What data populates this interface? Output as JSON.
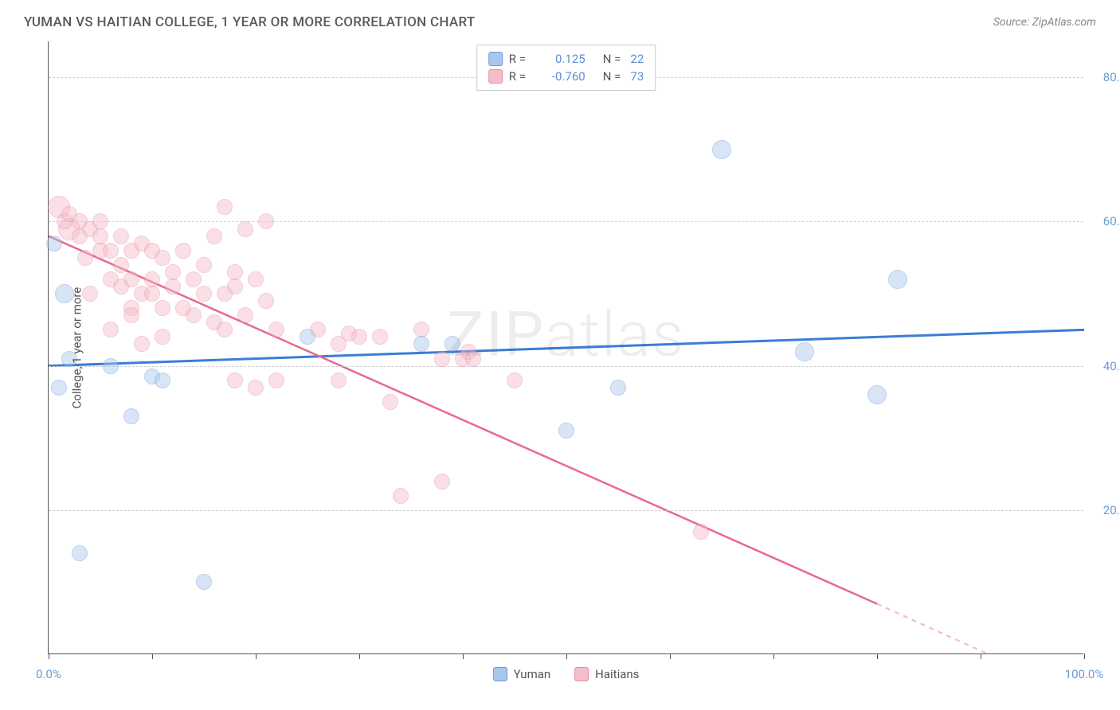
{
  "title": "YUMAN VS HAITIAN COLLEGE, 1 YEAR OR MORE CORRELATION CHART",
  "source_label": "Source: ZipAtlas.com",
  "y_axis_title": "College, 1 year or more",
  "watermark": {
    "part1": "ZIP",
    "part2": "atlas"
  },
  "chart": {
    "type": "scatter",
    "xlim": [
      0,
      100
    ],
    "ylim": [
      0,
      85
    ],
    "background_color": "#ffffff",
    "grid_color": "#d0d0d0",
    "axis_color": "#555555",
    "x_ticks": [
      0,
      10,
      20,
      30,
      40,
      50,
      60,
      70,
      80,
      90,
      100
    ],
    "x_tick_labels": {
      "0": "0.0%",
      "100": "100.0%"
    },
    "y_ticks": [
      20,
      40,
      60,
      80
    ],
    "y_tick_labels": {
      "20": "20.0%",
      "40": "40.0%",
      "60": "60.0%",
      "80": "80.0%"
    },
    "tick_label_color": "#6a9bd8",
    "tick_label_fontsize": 15,
    "marker_radius": 10,
    "marker_opacity": 0.45,
    "marker_stroke_opacity": 0.8,
    "series": {
      "yuman": {
        "label": "Yuman",
        "fill": "#a9c7ec",
        "stroke": "#6a9bd8",
        "swatch_fill": "#a9c7ec",
        "swatch_stroke": "#6a9bd8",
        "R": "0.125",
        "N": "22",
        "regression": {
          "x1": 0,
          "y1": 40,
          "x2": 100,
          "y2": 45,
          "color": "#3b7dd8",
          "width": 3
        },
        "points": [
          {
            "x": 0.5,
            "y": 57
          },
          {
            "x": 1.5,
            "y": 50,
            "r": 12
          },
          {
            "x": 1,
            "y": 37
          },
          {
            "x": 2,
            "y": 41
          },
          {
            "x": 3,
            "y": 14
          },
          {
            "x": 6,
            "y": 40
          },
          {
            "x": 8,
            "y": 33
          },
          {
            "x": 10,
            "y": 38.5
          },
          {
            "x": 11,
            "y": 38
          },
          {
            "x": 15,
            "y": 10
          },
          {
            "x": 25,
            "y": 44
          },
          {
            "x": 36,
            "y": 43
          },
          {
            "x": 39,
            "y": 43
          },
          {
            "x": 50,
            "y": 31
          },
          {
            "x": 55,
            "y": 37
          },
          {
            "x": 65,
            "y": 70,
            "r": 12
          },
          {
            "x": 73,
            "y": 42,
            "r": 12
          },
          {
            "x": 80,
            "y": 36,
            "r": 12
          },
          {
            "x": 82,
            "y": 52,
            "r": 12
          }
        ]
      },
      "haitians": {
        "label": "Haitians",
        "fill": "#f5bcc9",
        "stroke": "#e88ba3",
        "swatch_fill": "#f5bcc9",
        "swatch_stroke": "#e88ba3",
        "R": "-0.760",
        "N": "73",
        "regression": {
          "x1": 0,
          "y1": 58,
          "x2": 80,
          "y2": 7,
          "color": "#e76a8a",
          "width": 2.5
        },
        "regression_dash": {
          "x1": 80,
          "y1": 7,
          "x2": 100,
          "y2": -6,
          "color": "#f2b8c6",
          "width": 2
        },
        "points": [
          {
            "x": 1,
            "y": 62,
            "r": 14
          },
          {
            "x": 2,
            "y": 59,
            "r": 14
          },
          {
            "x": 1.5,
            "y": 60
          },
          {
            "x": 2,
            "y": 61
          },
          {
            "x": 3,
            "y": 60
          },
          {
            "x": 3,
            "y": 58
          },
          {
            "x": 3.5,
            "y": 55
          },
          {
            "x": 4,
            "y": 59
          },
          {
            "x": 4,
            "y": 50
          },
          {
            "x": 5,
            "y": 58
          },
          {
            "x": 5,
            "y": 56
          },
          {
            "x": 5,
            "y": 60
          },
          {
            "x": 6,
            "y": 52
          },
          {
            "x": 6,
            "y": 56
          },
          {
            "x": 6,
            "y": 45
          },
          {
            "x": 7,
            "y": 58
          },
          {
            "x": 7,
            "y": 54
          },
          {
            "x": 7,
            "y": 51
          },
          {
            "x": 8,
            "y": 56
          },
          {
            "x": 8,
            "y": 52
          },
          {
            "x": 8,
            "y": 48
          },
          {
            "x": 8,
            "y": 47
          },
          {
            "x": 9,
            "y": 57
          },
          {
            "x": 9,
            "y": 50
          },
          {
            "x": 9,
            "y": 43
          },
          {
            "x": 10,
            "y": 56
          },
          {
            "x": 10,
            "y": 52
          },
          {
            "x": 10,
            "y": 50
          },
          {
            "x": 11,
            "y": 55
          },
          {
            "x": 11,
            "y": 48
          },
          {
            "x": 11,
            "y": 44
          },
          {
            "x": 12,
            "y": 53
          },
          {
            "x": 12,
            "y": 51
          },
          {
            "x": 13,
            "y": 56
          },
          {
            "x": 13,
            "y": 48
          },
          {
            "x": 14,
            "y": 52
          },
          {
            "x": 14,
            "y": 47
          },
          {
            "x": 15,
            "y": 50
          },
          {
            "x": 15,
            "y": 54
          },
          {
            "x": 16,
            "y": 58
          },
          {
            "x": 16,
            "y": 46
          },
          {
            "x": 17,
            "y": 62
          },
          {
            "x": 17,
            "y": 50
          },
          {
            "x": 17,
            "y": 45
          },
          {
            "x": 18,
            "y": 53
          },
          {
            "x": 18,
            "y": 51
          },
          {
            "x": 18,
            "y": 38
          },
          {
            "x": 19,
            "y": 59
          },
          {
            "x": 19,
            "y": 47
          },
          {
            "x": 20,
            "y": 52
          },
          {
            "x": 20,
            "y": 37
          },
          {
            "x": 21,
            "y": 49
          },
          {
            "x": 21,
            "y": 60
          },
          {
            "x": 22,
            "y": 45
          },
          {
            "x": 22,
            "y": 38
          },
          {
            "x": 26,
            "y": 45
          },
          {
            "x": 28,
            "y": 43
          },
          {
            "x": 28,
            "y": 38
          },
          {
            "x": 29,
            "y": 44.5
          },
          {
            "x": 30,
            "y": 44
          },
          {
            "x": 32,
            "y": 44
          },
          {
            "x": 33,
            "y": 35
          },
          {
            "x": 34,
            "y": 22
          },
          {
            "x": 36,
            "y": 45
          },
          {
            "x": 38,
            "y": 41
          },
          {
            "x": 38,
            "y": 24
          },
          {
            "x": 40,
            "y": 41
          },
          {
            "x": 40.5,
            "y": 42
          },
          {
            "x": 41,
            "y": 41
          },
          {
            "x": 45,
            "y": 38
          },
          {
            "x": 63,
            "y": 17
          }
        ]
      }
    }
  },
  "legend_top": {
    "r_label": "R =",
    "n_label": "N =",
    "value_color": "#5b8fd6"
  },
  "bottom_legend": {
    "items": [
      "yuman",
      "haitians"
    ]
  }
}
